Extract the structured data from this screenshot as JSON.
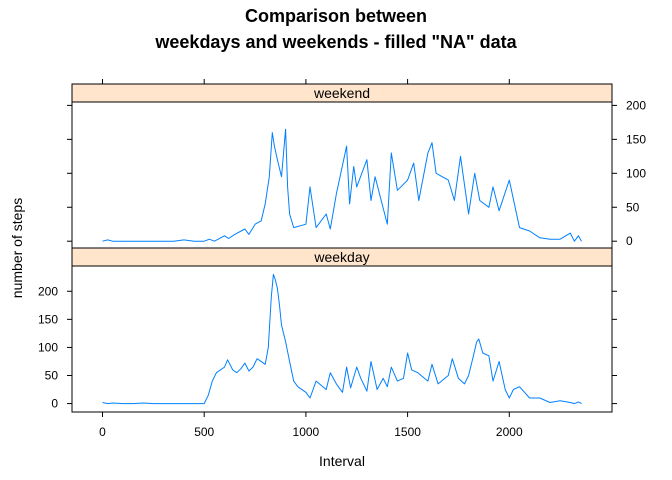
{
  "title_line1": "Comparison between",
  "title_line2": "weekdays and weekends - filled \"NA\" data",
  "chart_data": {
    "type": "line",
    "layout": "trellis, two stacked panels",
    "xlabel": "Interval",
    "ylabel": "number of steps",
    "xlim": [
      -150,
      2505
    ],
    "x_ticks": [
      0,
      500,
      1000,
      1500,
      2000
    ],
    "y_ticks": [
      0,
      50,
      100,
      150,
      200
    ],
    "series_color": "#0080ff",
    "strip_color": "#ffe5cc",
    "panels": [
      {
        "strip_label": "weekend",
        "ylim": [
          -10,
          205
        ],
        "y_axis_side": "right",
        "x": [
          0,
          25,
          50,
          100,
          150,
          200,
          250,
          300,
          350,
          400,
          450,
          500,
          525,
          550,
          600,
          620,
          650,
          700,
          720,
          750,
          780,
          800,
          820,
          835,
          845,
          860,
          880,
          900,
          910,
          920,
          940,
          1000,
          1020,
          1050,
          1100,
          1120,
          1150,
          1200,
          1215,
          1235,
          1250,
          1300,
          1320,
          1340,
          1400,
          1420,
          1450,
          1500,
          1530,
          1555,
          1600,
          1620,
          1640,
          1700,
          1730,
          1760,
          1800,
          1830,
          1855,
          1900,
          1920,
          1950,
          2000,
          2025,
          2050,
          2100,
          2150,
          2200,
          2250,
          2300,
          2320,
          2340,
          2355
        ],
        "values": [
          0,
          2,
          0,
          0,
          0,
          0,
          0,
          0,
          0,
          2,
          0,
          0,
          3,
          0,
          8,
          4,
          10,
          18,
          10,
          25,
          30,
          55,
          95,
          160,
          140,
          120,
          95,
          165,
          80,
          40,
          20,
          25,
          80,
          20,
          40,
          18,
          70,
          140,
          55,
          110,
          80,
          120,
          60,
          95,
          25,
          130,
          75,
          90,
          115,
          60,
          130,
          145,
          100,
          90,
          60,
          125,
          40,
          100,
          60,
          50,
          80,
          45,
          90,
          55,
          20,
          15,
          5,
          3,
          3,
          12,
          0,
          8,
          0
        ]
      },
      {
        "strip_label": "weekday",
        "ylim": [
          -15,
          245
        ],
        "y_axis_side": "left",
        "x": [
          0,
          25,
          50,
          100,
          150,
          200,
          250,
          300,
          350,
          400,
          450,
          500,
          520,
          540,
          560,
          600,
          615,
          640,
          660,
          680,
          700,
          720,
          740,
          760,
          800,
          815,
          830,
          840,
          850,
          860,
          870,
          880,
          900,
          920,
          940,
          960,
          1000,
          1020,
          1050,
          1100,
          1120,
          1150,
          1180,
          1200,
          1220,
          1250,
          1270,
          1300,
          1320,
          1350,
          1380,
          1400,
          1420,
          1450,
          1480,
          1500,
          1520,
          1550,
          1600,
          1620,
          1650,
          1700,
          1720,
          1750,
          1780,
          1800,
          1820,
          1840,
          1850,
          1870,
          1900,
          1920,
          1950,
          1980,
          2000,
          2020,
          2050,
          2100,
          2150,
          2200,
          2250,
          2300,
          2320,
          2340,
          2355
        ],
        "values": [
          2,
          0,
          1,
          0,
          0,
          1,
          0,
          0,
          0,
          0,
          0,
          0,
          15,
          40,
          55,
          65,
          78,
          60,
          55,
          62,
          72,
          58,
          65,
          80,
          70,
          100,
          190,
          230,
          220,
          205,
          175,
          140,
          110,
          75,
          40,
          30,
          20,
          10,
          40,
          25,
          55,
          35,
          20,
          65,
          28,
          65,
          45,
          22,
          75,
          25,
          45,
          30,
          65,
          40,
          45,
          90,
          60,
          55,
          40,
          70,
          35,
          50,
          80,
          45,
          35,
          50,
          80,
          110,
          115,
          90,
          85,
          40,
          75,
          25,
          10,
          25,
          30,
          10,
          10,
          2,
          5,
          2,
          0,
          3,
          0
        ]
      }
    ]
  }
}
